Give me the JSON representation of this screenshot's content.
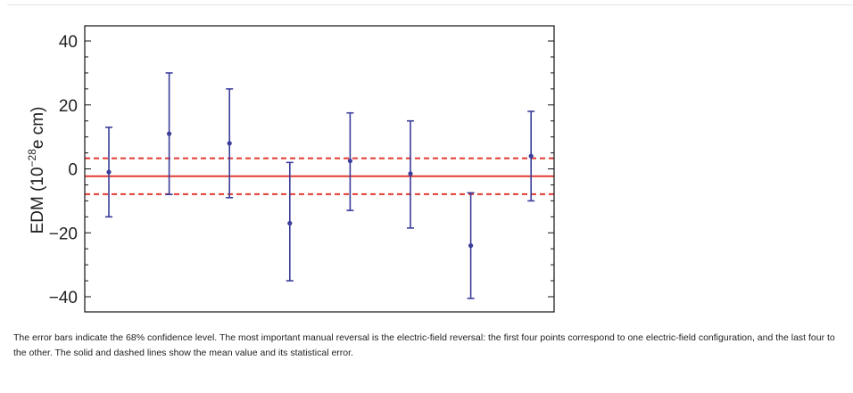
{
  "chart_data": {
    "type": "scatter",
    "title": "",
    "ylabel": {
      "main": "EDM (10",
      "sup": "−28",
      "tail": "e cm)"
    },
    "xlabel": "",
    "ylim": [
      -45,
      45
    ],
    "yticks": [
      40,
      20,
      0,
      -20,
      -40
    ],
    "ytick_labels": [
      "40",
      "20",
      "0",
      "−20",
      "−40"
    ],
    "grid": false,
    "points": [
      {
        "x": 1,
        "y": -1,
        "lower": -15,
        "upper": 13
      },
      {
        "x": 2,
        "y": 11,
        "lower": -8,
        "upper": 30
      },
      {
        "x": 3,
        "y": 8,
        "lower": -9,
        "upper": 25
      },
      {
        "x": 4,
        "y": -17,
        "lower": -35,
        "upper": 2
      },
      {
        "x": 5,
        "y": 2.5,
        "lower": -13,
        "upper": 17.5
      },
      {
        "x": 6,
        "y": -1.5,
        "lower": -18.5,
        "upper": 15
      },
      {
        "x": 7,
        "y": -24,
        "lower": -40.5,
        "upper": -7.5
      },
      {
        "x": 8,
        "y": 4,
        "lower": -10,
        "upper": 18
      }
    ],
    "mean_line": -2.3,
    "error_band": [
      -7.9,
      3.3
    ],
    "colors": {
      "points": "#3a3d9a",
      "mean": "#e33a30",
      "band": "#e33a30"
    }
  },
  "caption": "The error bars indicate the 68% confidence level. The most important manual reversal is the electric-field reversal: the first four points correspond to one electric-field configuration, and the last four to the other. The solid and dashed lines show the mean value and its statistical error."
}
